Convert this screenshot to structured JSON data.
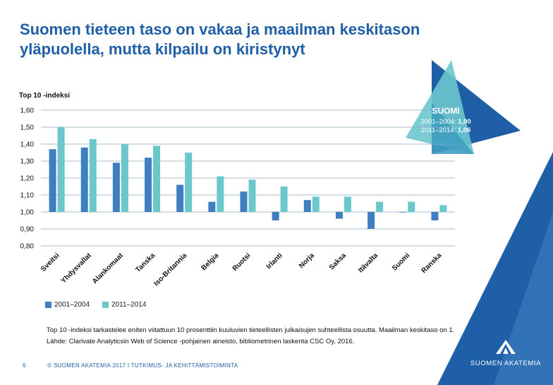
{
  "header": {
    "title": "Suomen tieteen taso on vakaa ja maailman keskitason yläpuolella, mutta kilpailu on kiristynyt"
  },
  "chart_data": {
    "type": "bar",
    "ylabel": "Top 10 -indeksi",
    "xlabel": "",
    "ylim": [
      0.8,
      1.6
    ],
    "baseline": 1.0,
    "yticks": [
      "0,80",
      "0,90",
      "1,00",
      "1,10",
      "1,20",
      "1,30",
      "1,40",
      "1,50",
      "1,60"
    ],
    "grid": true,
    "legend_position": "bottom-left",
    "categories": [
      "Sveitsi",
      "Yhdysvallat",
      "Alankomaat",
      "Tanska",
      "Iso-Britannia",
      "Belgia",
      "Ruotsi",
      "Irlanti",
      "Norja",
      "Saksa",
      "Itävalta",
      "Suomi",
      "Ranska"
    ],
    "series": [
      {
        "name": "2001–2004",
        "color": "#3f7fc1",
        "values": [
          1.37,
          1.38,
          1.29,
          1.32,
          1.16,
          1.06,
          1.12,
          0.95,
          1.07,
          0.96,
          0.9,
          1.0,
          0.95
        ]
      },
      {
        "name": "2011–2014",
        "color": "#6cc7cd",
        "values": [
          1.5,
          1.43,
          1.4,
          1.39,
          1.35,
          1.21,
          1.19,
          1.15,
          1.09,
          1.09,
          1.06,
          1.06,
          1.04
        ]
      }
    ]
  },
  "callout": {
    "title": "SUOMI",
    "line1_label": "2001–2004:",
    "line1_value": "1,00",
    "line2_label": "2011–2014:",
    "line2_value": "1,06"
  },
  "notes": {
    "line1": "Top 10 -indeksi tarkastelee eniten viitattuun 10 prosenttiin kuuluvien tieteellisten julkaisujen suhteellista osuutta. Maailman keskitaso on 1.",
    "line2": "Lähde: Clarivate Analyticsin Web of Science -pohjainen aineisto, bibliometrinen laskenta CSC Oy, 2016."
  },
  "footer": {
    "page": "6",
    "text": "© SUOMEN AKATEMIA 2017  I  TUTKIMUS- JA KEHITTÄMISTOIMINTA"
  },
  "logo": {
    "text": "SUOMEN AKATEMIA",
    "icon": "triangle-logo-icon"
  },
  "colors": {
    "title": "#1f5fa8",
    "dark_blue": "#1f5fa8",
    "light_teal": "#6cc7cd"
  }
}
